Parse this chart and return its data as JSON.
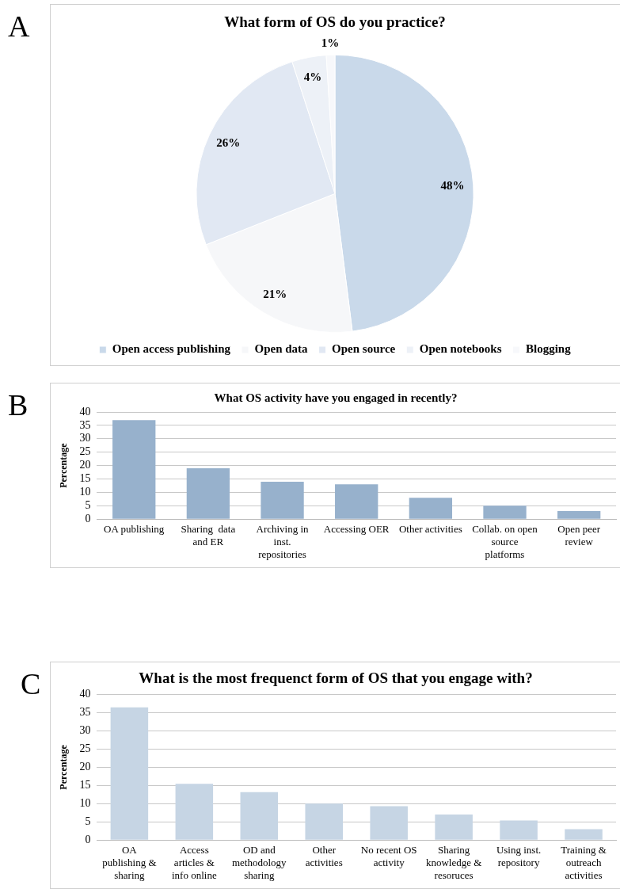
{
  "chart_data": [
    {
      "type": "pie",
      "title": "What form of OS do you practice?",
      "annotations": [
        "A"
      ],
      "categories": [
        "Open access publishing",
        "Open data",
        "Open source",
        "Open notebooks",
        "Blogging"
      ],
      "values": [
        48,
        21,
        26,
        4,
        1
      ],
      "value_labels": [
        "48%",
        "21%",
        "26%",
        "4%",
        "1%"
      ],
      "colors": [
        "#c9d9ea",
        "#f6f7f9",
        "#e1e8f3",
        "#edf1f7",
        "#f7f8fb"
      ],
      "legend": "bottom"
    },
    {
      "type": "bar",
      "title": "What OS activity have you engaged in recently?",
      "annotations": [
        "B"
      ],
      "ylabel": "Percentage",
      "categories": [
        "OA publishing",
        "Sharing  data and ER",
        "Archiving in inst. repositories",
        "Accessing OER",
        "Other activities",
        "Collab. on open source platforms",
        "Open peer review"
      ],
      "values": [
        37,
        19,
        14,
        13,
        8,
        5,
        3
      ],
      "color": "#97b1cc",
      "ylim": [
        0,
        40
      ],
      "yticks": [
        0,
        5,
        10,
        15,
        20,
        25,
        30,
        35,
        40
      ],
      "grid": "y"
    },
    {
      "type": "bar",
      "title": "What is the most frequenct form of OS that you engage with?",
      "annotations": [
        "C"
      ],
      "ylabel": "Percentage",
      "categories": [
        "OA publishing & sharing",
        "Access articles & info online",
        "OD and methodology sharing",
        "Other activities",
        "No recent OS activity",
        "Sharing knowledge & resoruces",
        "Using inst. repository",
        "Training & outreach activities"
      ],
      "values": [
        36.5,
        15.5,
        13.2,
        10,
        9.3,
        7,
        5.4,
        3
      ],
      "color": "#c6d5e4",
      "ylim": [
        0,
        40
      ],
      "yticks": [
        0,
        5,
        10,
        15,
        20,
        25,
        30,
        35,
        40
      ],
      "grid": "y"
    }
  ]
}
